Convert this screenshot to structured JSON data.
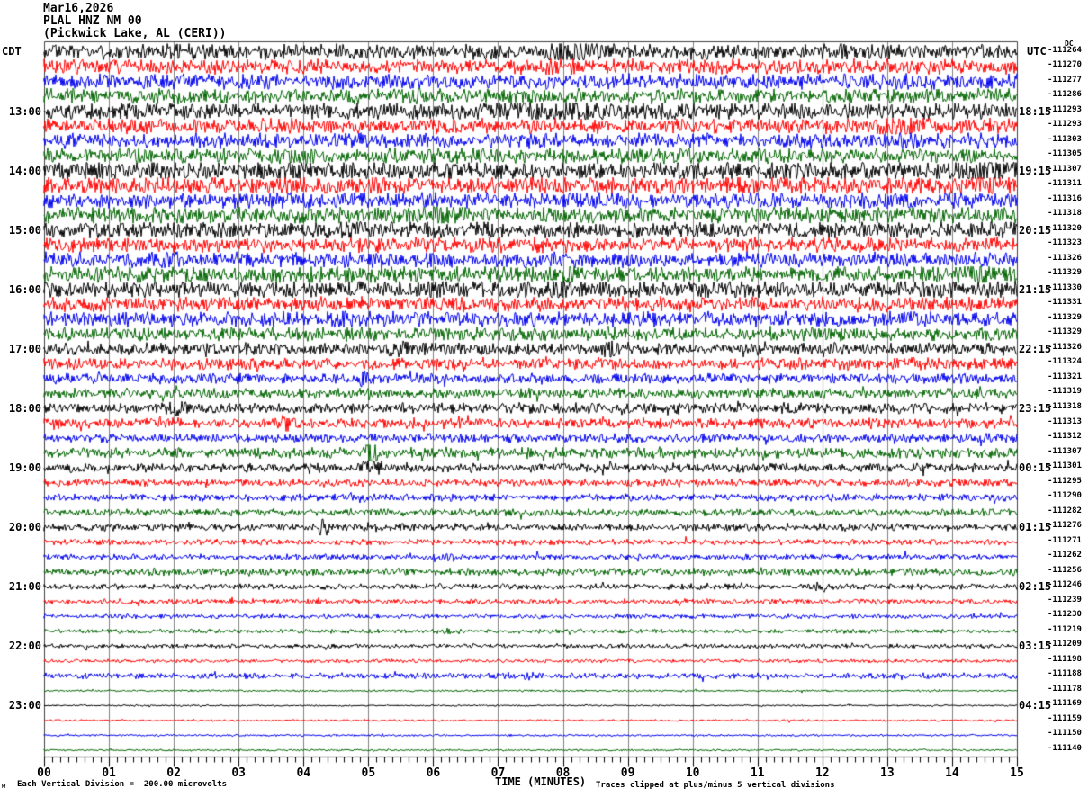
{
  "title": {
    "line1": "Mar16,2026",
    "line2": "PLAL HNZ NM 00",
    "line3": "(Pickwick Lake, AL (CERI))"
  },
  "left_axis": {
    "title": "CDT",
    "hour_labels": [
      "13:00",
      "14:00",
      "15:00",
      "16:00",
      "17:00",
      "18:00",
      "19:00",
      "20:00",
      "21:00",
      "22:00",
      "23:00"
    ]
  },
  "right_axis": {
    "title": "UTC",
    "dc_header": "DC",
    "hour_labels": [
      "18:15",
      "19:15",
      "20:15",
      "21:15",
      "22:15",
      "23:15",
      "00:15",
      "01:15",
      "02:15",
      "03:15",
      "04:15"
    ]
  },
  "x_axis": {
    "title": "TIME (MINUTES)",
    "tick_labels": [
      "00",
      "01",
      "02",
      "03",
      "04",
      "05",
      "06",
      "07",
      "08",
      "09",
      "10",
      "11",
      "12",
      "13",
      "14",
      "15"
    ]
  },
  "footer": {
    "scale_note": "Each Vertical Division =  200.00 microvolts",
    "clip_note": "Traces clipped at plus/minus 5 vertical divisions",
    "corner_mark": "м"
  },
  "chart_data": {
    "type": "line",
    "subtype": "helicorder-seismogram",
    "station": "PLAL HNZ NM 00",
    "location": "Pickwick Lake, AL (CERI)",
    "date": "Mar16,2026",
    "xlabel": "TIME (MINUTES)",
    "x_range_minutes": [
      0,
      15
    ],
    "minutes_per_row": 15,
    "rows_count": 48,
    "first_row_cdt": "12:15",
    "hour_label_rows": [
      5,
      9,
      13,
      17,
      21,
      25,
      29,
      33,
      37,
      41,
      45
    ],
    "trace_colors_cycle": [
      "#000000",
      "#ff0000",
      "#0000ee",
      "#006400"
    ],
    "grid_color": "#808080",
    "frame_color": "#404040",
    "clip_divisions": 5,
    "microvolts_per_division": 200.0,
    "dc_offsets": [
      -111264,
      -111270,
      -111277,
      -111286,
      -111293,
      -111293,
      -111303,
      -111305,
      -111307,
      -111311,
      -111316,
      -111318,
      -111320,
      -111323,
      -111326,
      -111329,
      -111330,
      -111331,
      -111329,
      -111329,
      -111326,
      -111324,
      -111321,
      -111319,
      -111318,
      -111313,
      -111312,
      -111307,
      -111301,
      -111295,
      -111290,
      -111282,
      -111276,
      -111271,
      -111262,
      -111256,
      -111246,
      -111239,
      -111230,
      -111219,
      -111209,
      -111198,
      -111188,
      -111178,
      -111169,
      -111159,
      -111150,
      -111140
    ],
    "amplitudes": [
      5.0,
      5.0,
      5.0,
      5.0,
      5.5,
      5.0,
      5.0,
      5.0,
      6.0,
      6.0,
      5.5,
      5.5,
      5.5,
      5.0,
      5.0,
      5.5,
      5.5,
      5.0,
      5.0,
      4.5,
      4.0,
      4.0,
      3.5,
      3.5,
      3.5,
      3.5,
      3.0,
      3.5,
      3.0,
      2.5,
      2.5,
      2.5,
      2.5,
      2.0,
      2.0,
      2.5,
      2.0,
      1.8,
      1.5,
      1.5,
      1.5,
      1.2,
      2.0,
      0.7,
      0.6,
      0.7,
      0.7,
      0.7
    ],
    "bursts": [
      {
        "row": 1,
        "minute": 8.15,
        "width": 0.22,
        "gain": 2.4
      },
      {
        "row": 2,
        "minute": 7.6,
        "width": 0.3,
        "gain": 1.5
      },
      {
        "row": 3,
        "minute": 13.4,
        "width": 0.25,
        "gain": 1.5
      },
      {
        "row": 5,
        "minute": 7.55,
        "width": 0.35,
        "gain": 1.8
      },
      {
        "row": 5,
        "minute": 8.35,
        "width": 0.18,
        "gain": 1.9
      },
      {
        "row": 6,
        "minute": 13.15,
        "width": 0.28,
        "gain": 1.8
      },
      {
        "row": 7,
        "minute": 13.3,
        "width": 0.2,
        "gain": 1.5
      },
      {
        "row": 9,
        "minute": 14.65,
        "width": 0.3,
        "gain": 2.0
      },
      {
        "row": 10,
        "minute": 14.7,
        "width": 0.25,
        "gain": 1.8
      },
      {
        "row": 12,
        "minute": 6.15,
        "width": 0.1,
        "gain": 2.4
      },
      {
        "row": 13,
        "minute": 4.55,
        "width": 0.2,
        "gain": 1.7
      },
      {
        "row": 15,
        "minute": 1.95,
        "width": 0.12,
        "gain": 1.8
      },
      {
        "row": 16,
        "minute": 8.1,
        "width": 0.1,
        "gain": 2.0
      },
      {
        "row": 16,
        "minute": 14.35,
        "width": 0.12,
        "gain": 2.4
      },
      {
        "row": 17,
        "minute": 7.95,
        "width": 0.12,
        "gain": 2.4
      },
      {
        "row": 19,
        "minute": 4.6,
        "width": 0.1,
        "gain": 1.8
      },
      {
        "row": 21,
        "minute": 2.55,
        "width": 0.07,
        "gain": 2.2
      },
      {
        "row": 21,
        "minute": 5.45,
        "width": 0.07,
        "gain": 2.2
      },
      {
        "row": 21,
        "minute": 8.75,
        "width": 0.09,
        "gain": 2.4
      },
      {
        "row": 23,
        "minute": 4.9,
        "width": 0.06,
        "gain": 2.2
      },
      {
        "row": 25,
        "minute": 2.0,
        "width": 0.1,
        "gain": 1.9
      },
      {
        "row": 26,
        "minute": 3.7,
        "width": 0.05,
        "gain": 2.6
      },
      {
        "row": 28,
        "minute": 5.05,
        "width": 0.05,
        "gain": 7.0
      },
      {
        "row": 29,
        "minute": 5.1,
        "width": 0.12,
        "gain": 2.2
      },
      {
        "row": 31,
        "minute": 4.85,
        "width": 0.08,
        "gain": 1.8
      },
      {
        "row": 33,
        "minute": 4.3,
        "width": 0.05,
        "gain": 6.0
      },
      {
        "row": 35,
        "minute": 6.3,
        "width": 0.1,
        "gain": 1.7
      },
      {
        "row": 37,
        "minute": 12.0,
        "width": 0.08,
        "gain": 1.8
      },
      {
        "row": 40,
        "minute": 6.3,
        "width": 0.1,
        "gain": 1.7
      },
      {
        "row": 43,
        "minute": 7.3,
        "width": 0.2,
        "gain": 1.5
      }
    ]
  }
}
